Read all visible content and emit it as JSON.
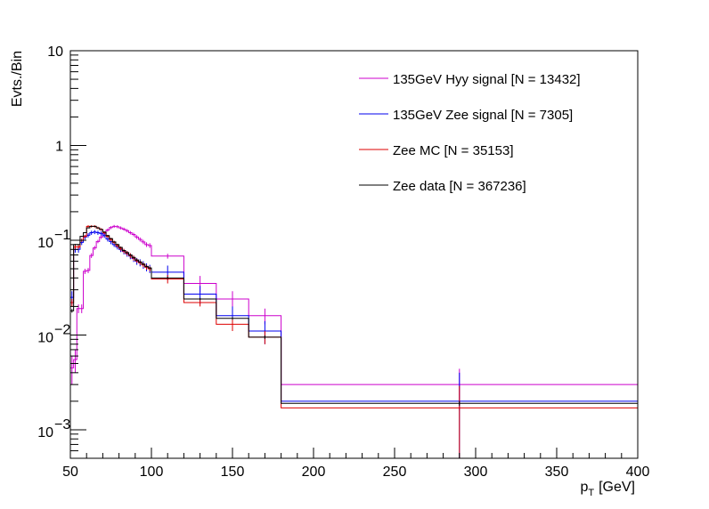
{
  "chart_data": {
    "type": "line",
    "xlabel": "p",
    "xlabel_sub": "T",
    "xlabel_unit": "[GeV]",
    "ylabel": "Evts./Bin",
    "xlim": [
      50,
      400
    ],
    "ylim": [
      0.0005,
      10
    ],
    "yscale": "log",
    "grid": false,
    "legend_position": "top-right",
    "x_ticks": [
      "50",
      "100",
      "150",
      "200",
      "250",
      "300",
      "350",
      "400"
    ],
    "y_ticks": [
      {
        "value": 10,
        "mantissa": "10",
        "exp": ""
      },
      {
        "value": 1,
        "mantissa": "1",
        "exp": ""
      },
      {
        "value": 0.1,
        "mantissa": "10",
        "exp": "−1"
      },
      {
        "value": 0.01,
        "mantissa": "10",
        "exp": "−2"
      },
      {
        "value": 0.001,
        "mantissa": "10",
        "exp": "−3"
      }
    ],
    "bin_edges": [
      50,
      52,
      54,
      56,
      58,
      60,
      62,
      64,
      66,
      68,
      70,
      72,
      74,
      76,
      78,
      80,
      82,
      84,
      86,
      88,
      90,
      92,
      94,
      96,
      98,
      100,
      120,
      140,
      160,
      180,
      400
    ],
    "series": [
      {
        "name": "135GeV Hyy signal [N = 13432]",
        "color": "#cc00cc",
        "values": [
          0.0045,
          0.0055,
          0.019,
          0.019,
          0.047,
          0.048,
          0.069,
          0.083,
          0.097,
          0.108,
          0.117,
          0.128,
          0.136,
          0.14,
          0.139,
          0.135,
          0.131,
          0.126,
          0.12,
          0.115,
          0.108,
          0.102,
          0.096,
          0.09,
          0.088,
          0.068,
          0.035,
          0.024,
          0.016,
          0.003
        ],
        "errors": [
          0.0015,
          0.0015,
          0.002,
          0.002,
          0.003,
          0.003,
          0.004,
          0.004,
          0.004,
          0.005,
          0.005,
          0.005,
          0.005,
          0.005,
          0.005,
          0.005,
          0.005,
          0.005,
          0.005,
          0.005,
          0.005,
          0.005,
          0.005,
          0.005,
          0.005,
          0.004,
          0.007,
          0.005,
          0.003,
          0.0014
        ]
      },
      {
        "name": "135GeV Zee signal [N = 7305]",
        "color": "#0000ee",
        "values": [
          0.025,
          0.08,
          0.08,
          0.095,
          0.108,
          0.113,
          0.12,
          0.122,
          0.12,
          0.118,
          0.112,
          0.103,
          0.097,
          0.09,
          0.085,
          0.08,
          0.076,
          0.072,
          0.068,
          0.064,
          0.06,
          0.058,
          0.055,
          0.052,
          0.05,
          0.046,
          0.027,
          0.016,
          0.011,
          0.002
        ],
        "errors": [
          0.004,
          0.006,
          0.006,
          0.006,
          0.006,
          0.006,
          0.006,
          0.006,
          0.006,
          0.006,
          0.006,
          0.006,
          0.006,
          0.005,
          0.005,
          0.005,
          0.005,
          0.005,
          0.005,
          0.005,
          0.005,
          0.005,
          0.005,
          0.005,
          0.005,
          0.008,
          0.006,
          0.004,
          0.003,
          0.002
        ]
      },
      {
        "name": "Zee MC [N = 35153]",
        "color": "#dd0000",
        "values": [
          0.022,
          0.085,
          0.085,
          0.1,
          0.11,
          0.14,
          0.14,
          0.14,
          0.135,
          0.13,
          0.12,
          0.11,
          0.102,
          0.095,
          0.088,
          0.082,
          0.077,
          0.073,
          0.069,
          0.065,
          0.061,
          0.058,
          0.055,
          0.052,
          0.05,
          0.039,
          0.022,
          0.013,
          0.0095,
          0.0017
        ],
        "errors": [
          0.002,
          0.004,
          0.004,
          0.004,
          0.004,
          0.004,
          0.004,
          0.004,
          0.004,
          0.004,
          0.004,
          0.004,
          0.004,
          0.004,
          0.004,
          0.004,
          0.004,
          0.004,
          0.004,
          0.004,
          0.003,
          0.003,
          0.003,
          0.003,
          0.003,
          0.004,
          0.002,
          0.002,
          0.0015,
          0.0012
        ]
      },
      {
        "name": "Zee data [N = 367236]",
        "color": "#000000",
        "values": [
          0.018,
          0.09,
          0.09,
          0.11,
          0.12,
          0.135,
          0.14,
          0.14,
          0.135,
          0.13,
          0.122,
          0.112,
          0.104,
          0.096,
          0.09,
          0.084,
          0.078,
          0.074,
          0.07,
          0.066,
          0.062,
          0.059,
          0.056,
          0.053,
          0.051,
          0.04,
          0.024,
          0.015,
          0.0095,
          0.0019
        ],
        "errors": [
          0.0008,
          0.0012,
          0.0012,
          0.0012,
          0.0012,
          0.0012,
          0.0012,
          0.0012,
          0.0012,
          0.0012,
          0.0012,
          0.0012,
          0.0012,
          0.0012,
          0.0012,
          0.0012,
          0.0012,
          0.0012,
          0.0012,
          0.0012,
          0.0012,
          0.0012,
          0.0012,
          0.0012,
          0.0012,
          0.0012,
          0.0006,
          0.0005,
          0.0004,
          0.0001
        ]
      }
    ]
  }
}
